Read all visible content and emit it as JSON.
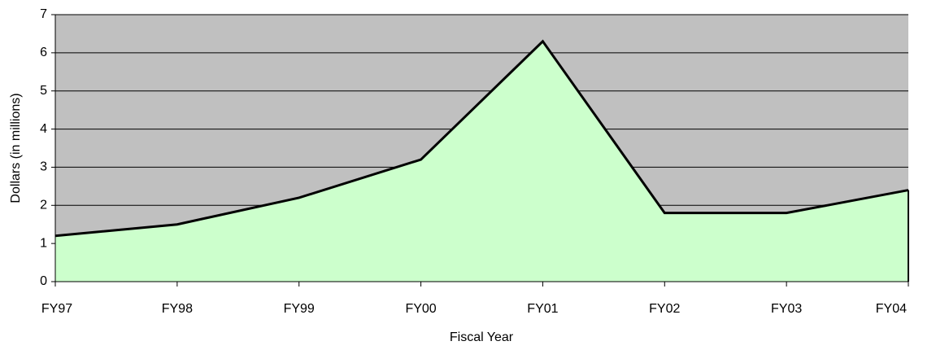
{
  "chart_data": {
    "type": "area",
    "categories": [
      "FY97",
      "FY98",
      "FY99",
      "FY00",
      "FY01",
      "FY02",
      "FY03",
      "FY04"
    ],
    "values": [
      1.2,
      1.5,
      2.2,
      3.2,
      6.3,
      1.8,
      1.8,
      2.4
    ],
    "color": "#ccffcc",
    "line_color": "#000000",
    "plot_background": "#c0c0c0",
    "ylim": [
      0,
      7
    ],
    "yticks": [
      0,
      1,
      2,
      3,
      4,
      5,
      6,
      7
    ],
    "grid": true,
    "xlabel": "Fiscal Year",
    "ylabel": "Dollars (in millions)"
  }
}
